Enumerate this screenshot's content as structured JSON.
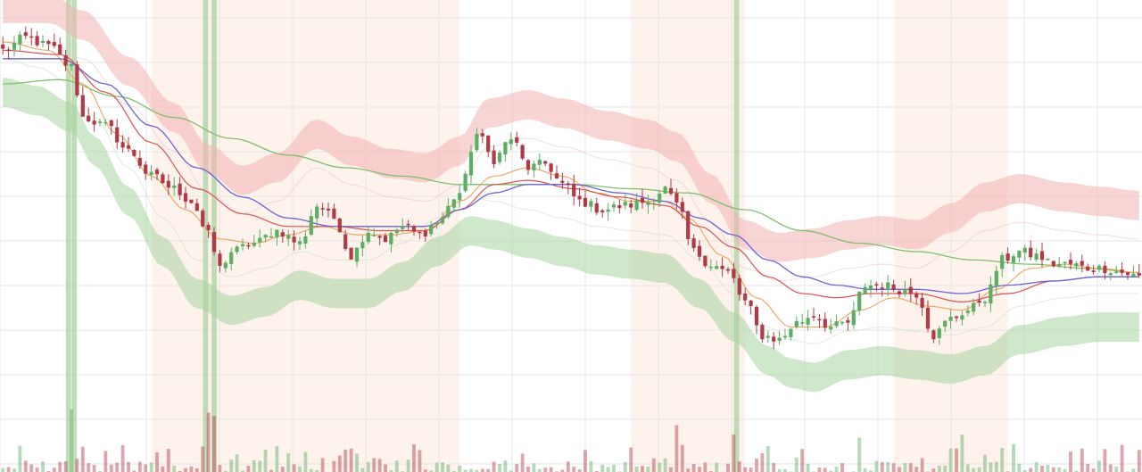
{
  "chart_data": {
    "type": "candlestick",
    "title": "",
    "xlabel": "",
    "ylabel": "",
    "grid": true,
    "legend": "none",
    "n_bars": 200,
    "ylim": [
      0,
      100
    ],
    "colors": {
      "up": "#5cae63",
      "down": "#b13a47",
      "ma_blue": "#6b63d6",
      "ma_red": "#d9534f",
      "ma_orange": "#f0a35a",
      "ma_green": "#7fbf6a",
      "band_upper": "#f2b2b2",
      "band_lower": "#a8d3a0",
      "zone_bg": "#fdeee6",
      "signal_bar": "#a6cf9c",
      "grid": "#e6e6e6"
    },
    "close_anchors": [
      [
        0,
        88
      ],
      [
        4,
        91
      ],
      [
        8,
        89
      ],
      [
        12,
        84
      ],
      [
        14,
        72
      ],
      [
        18,
        70
      ],
      [
        22,
        64
      ],
      [
        26,
        58
      ],
      [
        30,
        55
      ],
      [
        33,
        52
      ],
      [
        36,
        44
      ],
      [
        38,
        36
      ],
      [
        40,
        40
      ],
      [
        44,
        42
      ],
      [
        48,
        45
      ],
      [
        52,
        42
      ],
      [
        55,
        51
      ],
      [
        58,
        48
      ],
      [
        61,
        39
      ],
      [
        64,
        45
      ],
      [
        67,
        43
      ],
      [
        70,
        46
      ],
      [
        73,
        44
      ],
      [
        76,
        47
      ],
      [
        80,
        54
      ],
      [
        83,
        68
      ],
      [
        86,
        62
      ],
      [
        89,
        67
      ],
      [
        92,
        60
      ],
      [
        95,
        61
      ],
      [
        98,
        56
      ],
      [
        101,
        52
      ],
      [
        105,
        50
      ],
      [
        109,
        51
      ],
      [
        113,
        52
      ],
      [
        116,
        55
      ],
      [
        118,
        51
      ],
      [
        121,
        40
      ],
      [
        124,
        37
      ],
      [
        127,
        35
      ],
      [
        130,
        28
      ],
      [
        133,
        20
      ],
      [
        136,
        19
      ],
      [
        139,
        23
      ],
      [
        142,
        25
      ],
      [
        145,
        22
      ],
      [
        148,
        23
      ],
      [
        151,
        32
      ],
      [
        154,
        32
      ],
      [
        157,
        31
      ],
      [
        160,
        30
      ],
      [
        163,
        20
      ],
      [
        166,
        24
      ],
      [
        169,
        26
      ],
      [
        172,
        29
      ],
      [
        175,
        38
      ],
      [
        178,
        40
      ],
      [
        181,
        39
      ],
      [
        184,
        37
      ],
      [
        187,
        37
      ],
      [
        190,
        36
      ],
      [
        193,
        36
      ],
      [
        196,
        35
      ],
      [
        199,
        34
      ]
    ],
    "upper_band_anchors": [
      [
        8,
        98
      ],
      [
        14,
        94
      ],
      [
        22,
        83
      ],
      [
        30,
        72
      ],
      [
        36,
        62
      ],
      [
        42,
        57
      ],
      [
        48,
        60
      ],
      [
        55,
        68
      ],
      [
        61,
        64
      ],
      [
        68,
        61
      ],
      [
        74,
        60
      ],
      [
        80,
        64
      ],
      [
        85,
        73
      ],
      [
        92,
        75
      ],
      [
        98,
        73
      ],
      [
        106,
        70
      ],
      [
        113,
        68
      ],
      [
        118,
        65
      ],
      [
        124,
        55
      ],
      [
        130,
        44
      ],
      [
        136,
        41
      ],
      [
        142,
        42
      ],
      [
        148,
        44
      ],
      [
        154,
        45
      ],
      [
        160,
        44
      ],
      [
        166,
        48
      ],
      [
        172,
        53
      ],
      [
        178,
        55
      ],
      [
        186,
        53
      ],
      [
        192,
        52
      ],
      [
        199,
        51
      ]
    ],
    "lower_band_anchors": [
      [
        0,
        78
      ],
      [
        6,
        76
      ],
      [
        12,
        72
      ],
      [
        16,
        64
      ],
      [
        22,
        52
      ],
      [
        28,
        40
      ],
      [
        34,
        30
      ],
      [
        40,
        26
      ],
      [
        46,
        28
      ],
      [
        52,
        32
      ],
      [
        58,
        30
      ],
      [
        64,
        30
      ],
      [
        70,
        34
      ],
      [
        76,
        40
      ],
      [
        82,
        45
      ],
      [
        86,
        44
      ],
      [
        92,
        42
      ],
      [
        98,
        40
      ],
      [
        104,
        38
      ],
      [
        110,
        37
      ],
      [
        116,
        36
      ],
      [
        122,
        30
      ],
      [
        128,
        22
      ],
      [
        134,
        14
      ],
      [
        138,
        11
      ],
      [
        142,
        10
      ],
      [
        148,
        13
      ],
      [
        154,
        14
      ],
      [
        160,
        13
      ],
      [
        166,
        12
      ],
      [
        172,
        14
      ],
      [
        178,
        19
      ],
      [
        186,
        21
      ],
      [
        192,
        22
      ],
      [
        199,
        22
      ]
    ],
    "ma_blue_anchors": [
      [
        0,
        86
      ],
      [
        10,
        86
      ],
      [
        18,
        80
      ],
      [
        26,
        70
      ],
      [
        34,
        60
      ],
      [
        42,
        53
      ],
      [
        50,
        48
      ],
      [
        58,
        46
      ],
      [
        66,
        46
      ],
      [
        74,
        46
      ],
      [
        80,
        50
      ],
      [
        86,
        54
      ],
      [
        92,
        56
      ],
      [
        100,
        56
      ],
      [
        108,
        54
      ],
      [
        116,
        52
      ],
      [
        122,
        48
      ],
      [
        128,
        44
      ],
      [
        134,
        38
      ],
      [
        140,
        34
      ],
      [
        146,
        32
      ],
      [
        152,
        31
      ],
      [
        160,
        31
      ],
      [
        168,
        30
      ],
      [
        176,
        32
      ],
      [
        184,
        33
      ],
      [
        192,
        34
      ],
      [
        199,
        34
      ]
    ],
    "ma_red_anchors": [
      [
        0,
        88
      ],
      [
        10,
        87
      ],
      [
        18,
        78
      ],
      [
        26,
        66
      ],
      [
        34,
        55
      ],
      [
        42,
        49
      ],
      [
        50,
        46
      ],
      [
        58,
        46
      ],
      [
        66,
        45
      ],
      [
        74,
        45
      ],
      [
        80,
        50
      ],
      [
        86,
        56
      ],
      [
        92,
        57
      ],
      [
        100,
        55
      ],
      [
        108,
        53
      ],
      [
        116,
        51
      ],
      [
        122,
        46
      ],
      [
        128,
        41
      ],
      [
        134,
        34
      ],
      [
        140,
        30
      ],
      [
        146,
        29
      ],
      [
        152,
        30
      ],
      [
        160,
        30
      ],
      [
        168,
        28
      ],
      [
        176,
        30
      ],
      [
        184,
        33
      ],
      [
        192,
        34
      ],
      [
        199,
        34
      ]
    ],
    "ma_orange_anchors": [
      [
        0,
        90
      ],
      [
        8,
        88
      ],
      [
        14,
        80
      ],
      [
        20,
        68
      ],
      [
        26,
        58
      ],
      [
        32,
        50
      ],
      [
        38,
        43
      ],
      [
        44,
        42
      ],
      [
        50,
        44
      ],
      [
        56,
        46
      ],
      [
        62,
        44
      ],
      [
        68,
        44
      ],
      [
        74,
        45
      ],
      [
        80,
        52
      ],
      [
        86,
        58
      ],
      [
        92,
        60
      ],
      [
        98,
        58
      ],
      [
        104,
        54
      ],
      [
        110,
        52
      ],
      [
        116,
        52
      ],
      [
        120,
        48
      ],
      [
        126,
        39
      ],
      [
        132,
        29
      ],
      [
        138,
        22
      ],
      [
        144,
        22
      ],
      [
        150,
        26
      ],
      [
        156,
        29
      ],
      [
        162,
        27
      ],
      [
        168,
        26
      ],
      [
        174,
        31
      ],
      [
        180,
        36
      ],
      [
        186,
        37
      ],
      [
        192,
        36
      ],
      [
        199,
        35
      ]
    ],
    "ma_green_anchors": [
      [
        0,
        80
      ],
      [
        10,
        81
      ],
      [
        20,
        77
      ],
      [
        30,
        72
      ],
      [
        40,
        67
      ],
      [
        50,
        63
      ],
      [
        60,
        60
      ],
      [
        70,
        58
      ],
      [
        80,
        56
      ],
      [
        90,
        56
      ],
      [
        100,
        56
      ],
      [
        110,
        55
      ],
      [
        120,
        54
      ],
      [
        130,
        50
      ],
      [
        140,
        45
      ],
      [
        150,
        42
      ],
      [
        160,
        40
      ],
      [
        170,
        38
      ],
      [
        180,
        37
      ],
      [
        190,
        36
      ],
      [
        199,
        35
      ]
    ],
    "shaded_zones": [
      [
        26,
        80
      ],
      [
        110,
        130
      ],
      [
        156,
        176
      ]
    ],
    "signal_bars": [
      11.5,
      12.5,
      35.5,
      37.0,
      128.5
    ],
    "volume_spikes": [
      [
        12,
        1.0
      ],
      [
        36,
        0.95
      ],
      [
        37,
        0.9
      ],
      [
        118,
        0.75
      ],
      [
        128,
        0.6
      ],
      [
        150,
        0.55
      ],
      [
        168,
        0.6
      ]
    ],
    "seed": 12345
  }
}
